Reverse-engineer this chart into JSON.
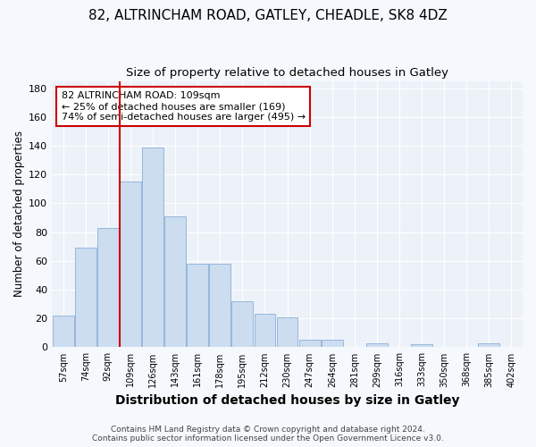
{
  "title": "82, ALTRINCHAM ROAD, GATLEY, CHEADLE, SK8 4DZ",
  "subtitle": "Size of property relative to detached houses in Gatley",
  "xlabel": "Distribution of detached houses by size in Gatley",
  "ylabel": "Number of detached properties",
  "bar_labels": [
    "57sqm",
    "74sqm",
    "92sqm",
    "109sqm",
    "126sqm",
    "143sqm",
    "161sqm",
    "178sqm",
    "195sqm",
    "212sqm",
    "230sqm",
    "247sqm",
    "264sqm",
    "281sqm",
    "299sqm",
    "316sqm",
    "333sqm",
    "350sqm",
    "368sqm",
    "385sqm",
    "402sqm"
  ],
  "bar_values": [
    22,
    69,
    83,
    115,
    139,
    91,
    58,
    58,
    32,
    23,
    21,
    5,
    5,
    0,
    3,
    0,
    2,
    0,
    0,
    3,
    0
  ],
  "bar_color": "#ccddf0",
  "bar_edge_color": "#8ab0d8",
  "highlight_bar_idx": 3,
  "highlight_color": "#cc0000",
  "annotation_title": "82 ALTRINCHAM ROAD: 109sqm",
  "annotation_line1": "← 25% of detached houses are smaller (169)",
  "annotation_line2": "74% of semi-detached houses are larger (495) →",
  "annotation_box_color": "#cc0000",
  "ylim": [
    0,
    185
  ],
  "yticks": [
    0,
    20,
    40,
    60,
    80,
    100,
    120,
    140,
    160,
    180
  ],
  "footer_line1": "Contains HM Land Registry data © Crown copyright and database right 2024.",
  "footer_line2": "Contains public sector information licensed under the Open Government Licence v3.0.",
  "bg_color": "#f5f8fc",
  "plot_bg_color": "#edf2f9",
  "grid_color": "#ffffff",
  "title_fontsize": 11,
  "subtitle_fontsize": 9.5,
  "xlabel_fontsize": 10,
  "ylabel_fontsize": 8.5,
  "footer_fontsize": 6.5
}
